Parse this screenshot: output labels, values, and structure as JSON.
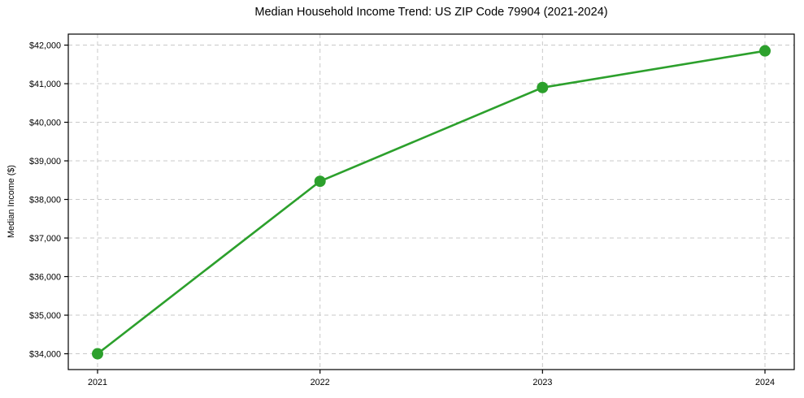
{
  "chart_data": {
    "type": "line",
    "title": "Median Household Income Trend: US ZIP Code 79904 (2021-2024)",
    "xlabel": "",
    "ylabel": "Median Income ($)",
    "categories": [
      "2021",
      "2022",
      "2023",
      "2024"
    ],
    "values": [
      34000,
      38470,
      40900,
      41850
    ],
    "ylim": [
      33590,
      42285
    ],
    "yticks": [
      34000,
      35000,
      36000,
      37000,
      38000,
      39000,
      40000,
      41000,
      42000
    ],
    "ytick_labels": [
      "$34,000",
      "$35,000",
      "$36,000",
      "$37,000",
      "$38,000",
      "$39,000",
      "$40,000",
      "$41,000",
      "$42,000"
    ],
    "grid": true,
    "grid_style": "dashed",
    "legend_position": "none",
    "line_color": "#2ca02c",
    "grid_color": "#c9c9c9",
    "axis_color": "#000000",
    "background_color": "#ffffff",
    "marker": "circle"
  }
}
